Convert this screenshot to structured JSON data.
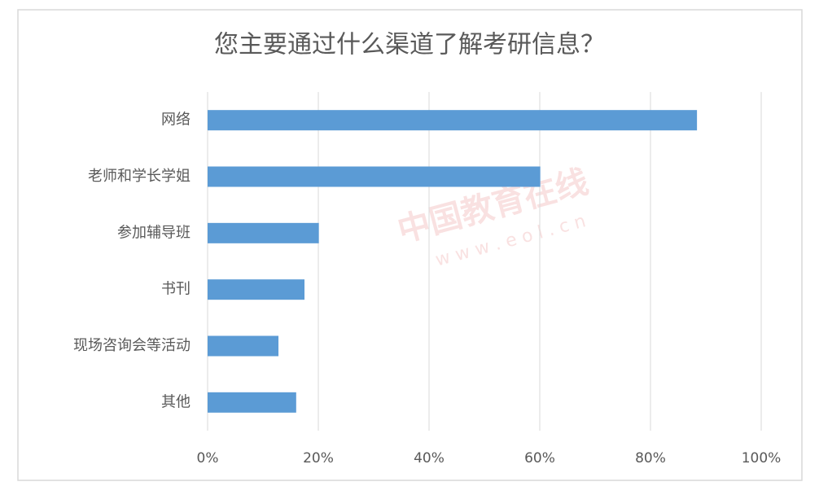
{
  "chart_data": {
    "type": "hbar",
    "title": "您主要通过什么渠道了解考研信息？",
    "categories": [
      "网络",
      "老师和学长学姐",
      "参加辅导班",
      "书刊",
      "现场咨询会等活动",
      "其他"
    ],
    "values": [
      88.4,
      60.1,
      20.1,
      17.5,
      12.8,
      16
    ],
    "color": "#5b9bd5",
    "xlim": [
      0,
      100
    ],
    "xticks": [
      {
        "value": 0,
        "label": "0%"
      },
      {
        "value": 20,
        "label": "20%"
      },
      {
        "value": 40,
        "label": "40%"
      },
      {
        "value": 60,
        "label": "60%"
      },
      {
        "value": 80,
        "label": "80%"
      },
      {
        "value": 100,
        "label": "100%"
      }
    ],
    "grid": true,
    "watermark": "中国教育在线",
    "watermark_url": "w w w . e o l . c n"
  }
}
